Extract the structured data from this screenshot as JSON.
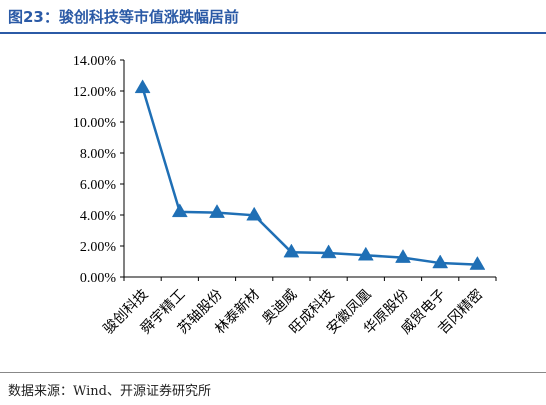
{
  "header": {
    "title": "图23：骏创科技等市值涨跌幅居前"
  },
  "footer": {
    "source": "数据来源：Wind、开源证券研究所"
  },
  "colors": {
    "series": "#1f6fb5",
    "title": "#2b5aa6",
    "axis": "#000000"
  },
  "chart_data": {
    "type": "line",
    "categories": [
      "骏创科技",
      "舜宇精工",
      "苏轴股份",
      "林泰新材",
      "奥迪威",
      "旺成科技",
      "安徽凤凰",
      "华原股份",
      "威贸电子",
      "吉冈精密"
    ],
    "series": [
      {
        "values": [
          12.2,
          4.2,
          4.15,
          3.98,
          1.6,
          1.55,
          1.4,
          1.25,
          0.9,
          0.8
        ]
      }
    ],
    "marker": "triangle",
    "ylim": [
      0,
      14
    ],
    "yticks": [
      "0.00%",
      "2.00%",
      "4.00%",
      "6.00%",
      "8.00%",
      "10.00%",
      "12.00%",
      "14.00%"
    ],
    "xlabel": "",
    "ylabel": "",
    "grid": false,
    "legend": "none"
  }
}
